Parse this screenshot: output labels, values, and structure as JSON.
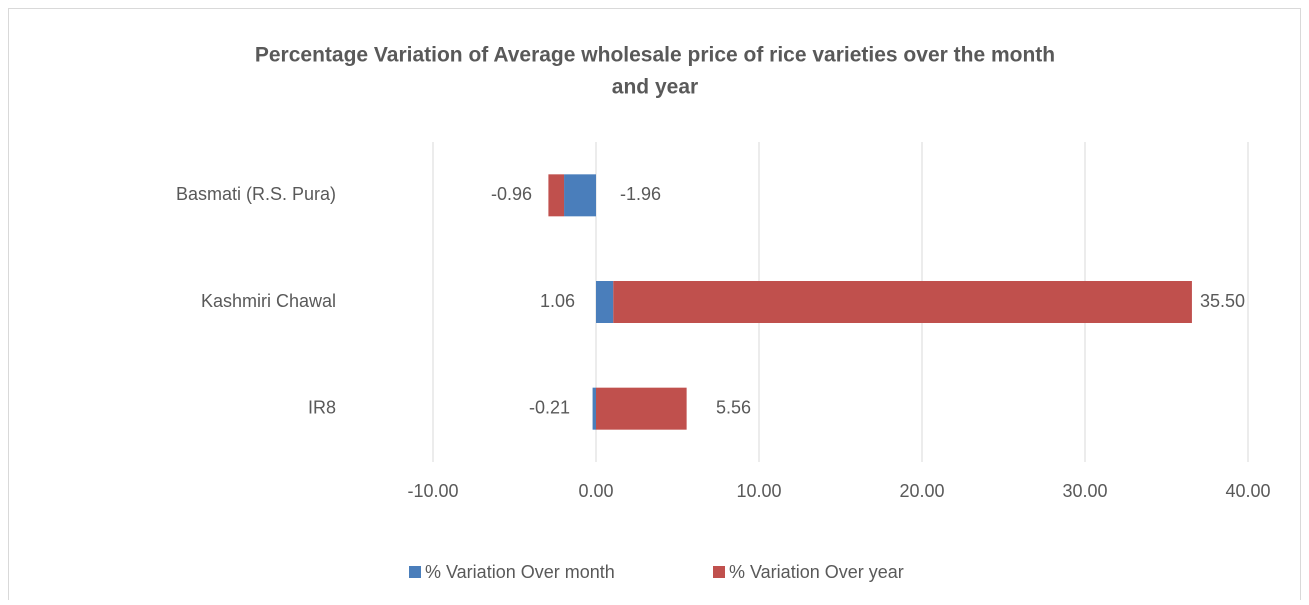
{
  "chart_data": {
    "type": "stacked_bar_horizontal",
    "title": [
      "Percentage Variation of Average wholesale price of rice varieties over the month",
      "and year"
    ],
    "categories": [
      "Basmati (R.S. Pura)",
      "Kashmiri Chawal",
      "IR8"
    ],
    "series": [
      {
        "name": "% Variation Over month",
        "color": "#4a7ebb",
        "values": [
          -1.96,
          1.06,
          -0.21
        ],
        "value_labels": [
          "-1.96",
          "1.06",
          "-0.21"
        ]
      },
      {
        "name": "% Variation Over year",
        "color": "#c0504d",
        "values": [
          -0.96,
          35.5,
          5.56
        ],
        "value_labels": [
          "-0.96",
          "35.50",
          "5.56"
        ]
      }
    ],
    "xlim": [
      -10,
      40
    ],
    "xticks": [
      {
        "value": -10,
        "label": "-10.00"
      },
      {
        "value": 0,
        "label": "0.00"
      },
      {
        "value": 10,
        "label": "10.00"
      },
      {
        "value": 20,
        "label": "20.00"
      },
      {
        "value": 30,
        "label": "30.00"
      },
      {
        "value": 40,
        "label": "40.00"
      }
    ],
    "grid": true,
    "legend": "bottom"
  }
}
